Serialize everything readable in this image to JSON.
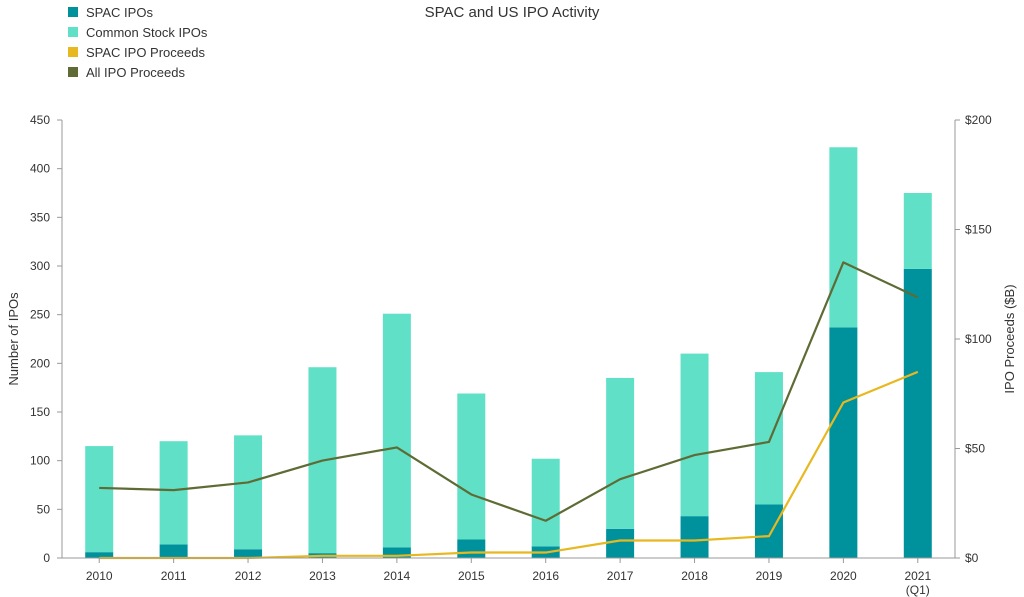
{
  "chart_data": {
    "type": "bar",
    "title": "SPAC and US IPO Activity",
    "categories": [
      "2010",
      "2011",
      "2012",
      "2013",
      "2014",
      "2015",
      "2016",
      "2017",
      "2018",
      "2019",
      "2020",
      "2021 (Q1)"
    ],
    "series": [
      {
        "name": "SPAC IPOs",
        "kind": "bar",
        "stack": "ipos",
        "axis": "left",
        "color": "#00929c",
        "values": [
          6,
          14,
          9,
          5,
          11,
          19,
          12,
          30,
          43,
          55,
          237,
          297
        ]
      },
      {
        "name": "Common Stock IPOs",
        "kind": "bar",
        "stack": "ipos",
        "axis": "left",
        "color": "#61e0c8",
        "values": [
          109,
          106,
          117,
          191,
          240,
          150,
          90,
          155,
          167,
          136,
          185,
          78
        ]
      },
      {
        "name": "SPAC IPO Proceeds",
        "kind": "line",
        "axis": "right",
        "color": "#e8b820",
        "values": [
          0,
          0,
          0,
          1,
          1,
          2.5,
          2.5,
          8,
          8,
          10,
          71,
          85
        ]
      },
      {
        "name": "All IPO Proceeds",
        "kind": "line",
        "axis": "right",
        "color": "#5e6b35",
        "values": [
          32,
          31,
          34.5,
          44.5,
          50.5,
          29,
          17,
          36,
          47,
          53,
          135,
          119
        ]
      }
    ],
    "ylabel": "Number of IPOs",
    "ylim": [
      0,
      450
    ],
    "yticks": [
      "0",
      "50",
      "100",
      "150",
      "200",
      "250",
      "300",
      "350",
      "400",
      "450"
    ],
    "y2label": "IPO Proceeds ($B)",
    "y2lim": [
      0,
      200
    ],
    "y2ticks": [
      "$0",
      "$50",
      "$100",
      "$150",
      "$200"
    ],
    "legend_position": "top-left",
    "grid": false
  }
}
